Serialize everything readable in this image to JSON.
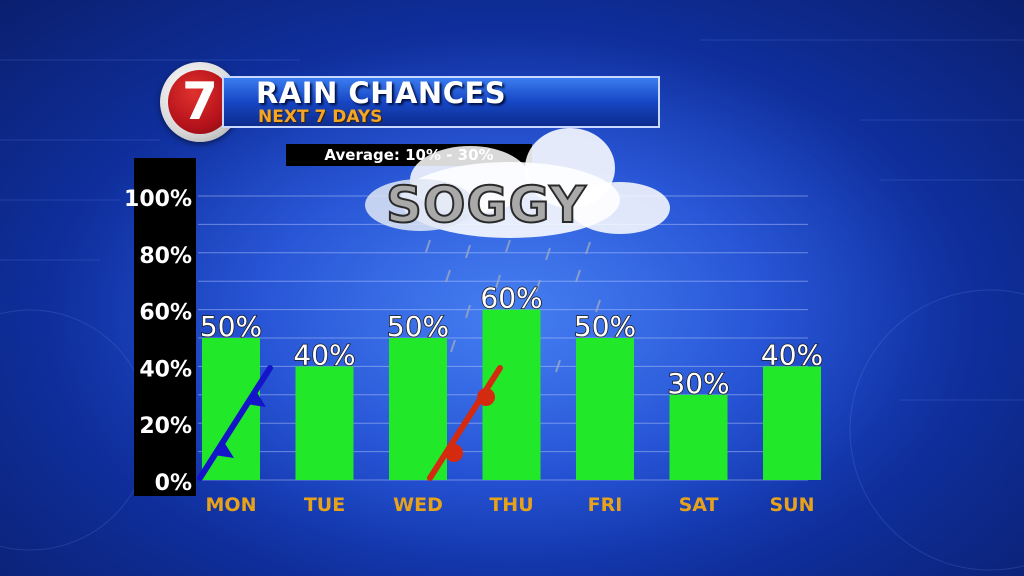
{
  "header": {
    "logo_text": "7",
    "title": "RAIN CHANCES",
    "subtitle": "NEXT 7 DAYS",
    "average_label": "Average: 10% - 30%"
  },
  "annotation": {
    "word": "SOGGY",
    "icon": "rain-cloud-icon"
  },
  "colors": {
    "bar": "#22e82a",
    "day_label": "#e8a21a",
    "cold_front": "#1414c8",
    "warm_front": "#d42a10",
    "background": "#1c49cf"
  },
  "chart_data": {
    "type": "bar",
    "categories": [
      "MON",
      "TUE",
      "WED",
      "THU",
      "FRI",
      "SAT",
      "SUN"
    ],
    "values": [
      50,
      40,
      50,
      60,
      50,
      30,
      40
    ],
    "data_labels": [
      "50%",
      "40%",
      "50%",
      "60%",
      "50%",
      "30%",
      "40%"
    ],
    "yticks": [
      0,
      20,
      40,
      60,
      80,
      100
    ],
    "ytick_labels": [
      "0%",
      "20%",
      "40%",
      "60%",
      "80%",
      "100%"
    ],
    "ylim": [
      0,
      100
    ],
    "grid": true,
    "front_symbols": [
      {
        "type": "cold",
        "day": "MON"
      },
      {
        "type": "warm",
        "day": "WED-THU"
      }
    ]
  }
}
